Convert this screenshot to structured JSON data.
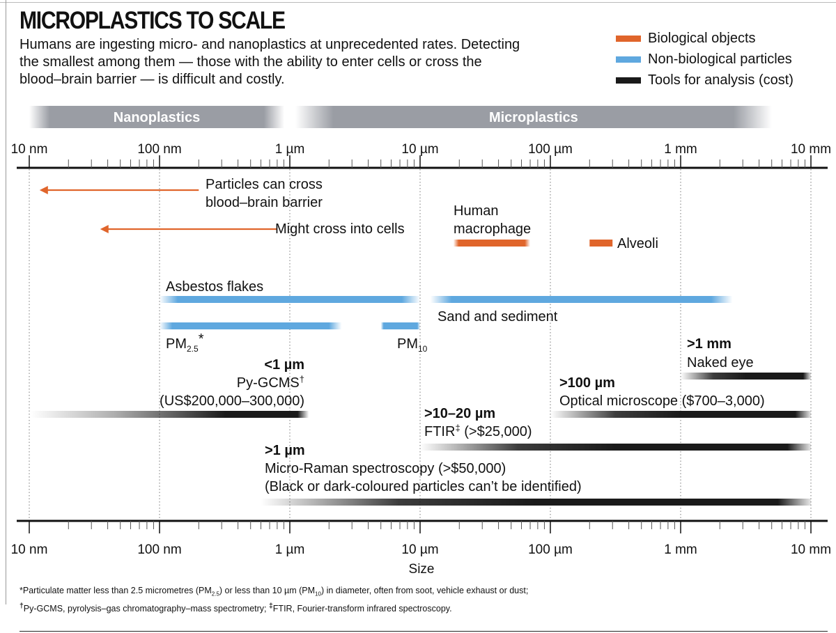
{
  "header": {
    "title": "MICROPLASTICS TO SCALE",
    "subtitle": "Humans are ingesting micro- and nanoplastics at unprecedented rates. Detecting the smallest among them — those with the ability to enter cells or cross the blood–brain barrier — is difficult and costly."
  },
  "legend": [
    {
      "label": "Biological objects",
      "color": "#e0652b"
    },
    {
      "label": "Non-biological particles",
      "color": "#5fa8df"
    },
    {
      "label": "Tools for analysis (cost)",
      "color": "#1a1a1a"
    }
  ],
  "chart_data": {
    "type": "range-bar",
    "scale": "log",
    "unit": "nm",
    "xlim": [
      10,
      10000000
    ],
    "xlabel": "Size",
    "tick_labels": [
      {
        "value": 10,
        "label": "10 nm"
      },
      {
        "value": 100,
        "label": "100 nm"
      },
      {
        "value": 1000,
        "label": "1 µm"
      },
      {
        "value": 10000,
        "label": "10 µm"
      },
      {
        "value": 100000,
        "label": "100 µm"
      },
      {
        "value": 1000000,
        "label": "1 mm"
      },
      {
        "value": 10000000,
        "label": "10 mm"
      }
    ],
    "bands": [
      {
        "label": "Nanoplastics",
        "from": 10,
        "to": 1000
      },
      {
        "label": "Microplastics",
        "from": 1000,
        "to": 5000000
      }
    ],
    "arrows": [
      {
        "label_lines": [
          "Particles can cross",
          "blood–brain barrier"
        ],
        "from": 200,
        "to": 12,
        "category": "biological"
      },
      {
        "label_lines": [
          "Might cross into cells"
        ],
        "from": 800,
        "to": 35,
        "category": "biological"
      }
    ],
    "ranges": [
      {
        "name": "human-macrophage",
        "label_lines": [
          "Human",
          "macrophage"
        ],
        "from": 18000,
        "to": 70000,
        "category": "biological"
      },
      {
        "name": "alveoli",
        "label_lines": [
          "Alveoli"
        ],
        "from": 200000,
        "to": 300000,
        "category": "biological"
      },
      {
        "name": "asbestos-flakes",
        "label_lines": [
          "Asbestos flakes"
        ],
        "from": 100,
        "to": 10000,
        "category": "non-biological"
      },
      {
        "name": "sand-and-sediment",
        "label_lines": [
          "Sand and sediment"
        ],
        "from": 12000,
        "to": 2500000,
        "category": "non-biological"
      },
      {
        "name": "pm25",
        "label_lines": [
          "PM",
          "2.5",
          "*"
        ],
        "from": 100,
        "to": 2500,
        "category": "non-biological"
      },
      {
        "name": "pm10",
        "label_lines": [
          "PM",
          "10"
        ],
        "from": 5000,
        "to": 10000,
        "category": "non-biological"
      }
    ],
    "tools": [
      {
        "name": "naked-eye",
        "threshold": ">1 mm",
        "label_lines": [
          "Naked eye"
        ],
        "from": 1000000,
        "to": 10000000
      },
      {
        "name": "optical-microscope",
        "threshold": ">100 µm",
        "label_lines": [
          "Optical microscope ($700–3,000)"
        ],
        "from": 100000,
        "to": 10000000
      },
      {
        "name": "ftir",
        "threshold": ">10–20 µm",
        "label_lines": [
          "FTIR",
          "‡",
          " (>$25,000)"
        ],
        "from": 10000,
        "to": 10000000
      },
      {
        "name": "micro-raman",
        "threshold": ">1 µm",
        "label_lines": [
          "Micro-Raman spectroscopy (>$50,000)",
          "(Black or dark-coloured particles can’t be identified)"
        ],
        "from": 600,
        "to": 10000000
      },
      {
        "name": "py-gcms",
        "threshold": "<1 µm",
        "label_lines": [
          "Py-GCMS",
          "†",
          "(US$200,000–300,000)"
        ],
        "from": 10,
        "to": 1400
      }
    ]
  },
  "footnotes": {
    "line1_a": "*Particulate matter less than 2.5 micrometres (PM",
    "line1_sub1": "2.5",
    "line1_b": ") or less than 10 µm (PM",
    "line1_sub2": "10",
    "line1_c": ") in diameter, often from soot, vehicle exhaust or dust;",
    "line2_mark1": "†",
    "line2_a": "Py-GCMS, pyrolysis–gas chromatography–mass spectrometry; ",
    "line2_mark2": "‡",
    "line2_b": "FTIR, Fourier-transform infrared spectroscopy."
  }
}
